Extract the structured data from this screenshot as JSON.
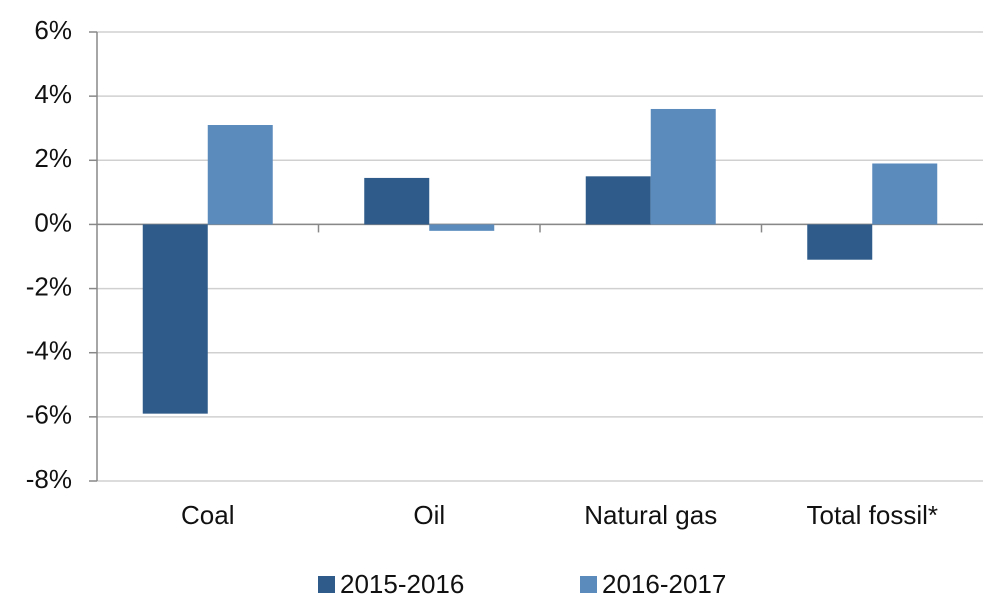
{
  "chart_data": {
    "type": "bar",
    "categories": [
      "Coal",
      "Oil",
      "Natural gas",
      "Total fossil*"
    ],
    "series": [
      {
        "name": "2015-2016",
        "color": "#2e5b8a",
        "values": [
          -5.9,
          1.45,
          1.5,
          -1.1
        ]
      },
      {
        "name": "2016-2017",
        "color": "#5b8bbd",
        "values": [
          3.1,
          -0.2,
          3.6,
          1.9
        ]
      }
    ],
    "ylim": [
      -8,
      6
    ],
    "yticks": [
      {
        "value": -8,
        "label": "-8%"
      },
      {
        "value": -6,
        "label": "-6%"
      },
      {
        "value": -4,
        "label": "-4%"
      },
      {
        "value": -2,
        "label": "-2%"
      },
      {
        "value": 0,
        "label": "0%"
      },
      {
        "value": 2,
        "label": "2%"
      },
      {
        "value": 4,
        "label": "4%"
      },
      {
        "value": 6,
        "label": "6%"
      }
    ],
    "grid": true,
    "legend": "bottom"
  }
}
